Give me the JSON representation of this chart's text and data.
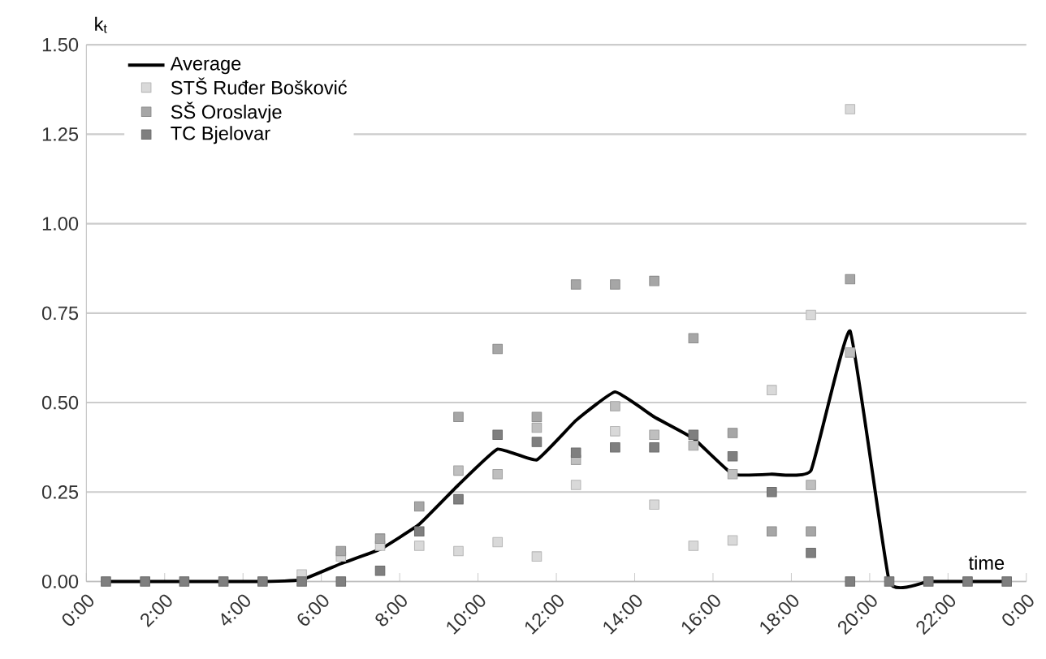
{
  "chart_data": {
    "type": "scatter",
    "xlabel": "time",
    "ylabel": "k$_{t}$",
    "x": [
      0.5,
      1.5,
      2.5,
      3.5,
      4.5,
      5.5,
      6.5,
      7.5,
      8.5,
      9.5,
      10.5,
      11.5,
      12.5,
      13.5,
      14.5,
      15.5,
      16.5,
      17.5,
      18.5,
      19.5,
      20.5,
      21.5,
      22.5,
      23.5
    ],
    "series": [
      {
        "name": "STŠ Ruđer Bošković",
        "color": "#d9d9d9",
        "values": [
          null,
          null,
          null,
          null,
          null,
          0.02,
          0.07,
          0.1,
          0.1,
          0.085,
          0.11,
          0.07,
          0.27,
          0.42,
          0.215,
          0.1,
          0.115,
          0.535,
          0.745,
          1.32,
          null,
          null,
          null,
          null
        ]
      },
      {
        "color": "#bfbfbf",
        "values": [
          null,
          null,
          null,
          null,
          null,
          null,
          null,
          null,
          null,
          0.31,
          0.3,
          0.43,
          0.34,
          0.49,
          0.41,
          0.38,
          0.3,
          null,
          0.27,
          0.64,
          null,
          null,
          null,
          null
        ]
      },
      {
        "name": "SŠ Oroslavje",
        "color": "#a6a6a6",
        "values": [
          null,
          null,
          null,
          null,
          null,
          null,
          0.085,
          0.12,
          0.21,
          0.46,
          0.65,
          0.46,
          0.83,
          0.83,
          0.84,
          0.68,
          0.415,
          0.14,
          0.14,
          0.845,
          null,
          null,
          null,
          null
        ]
      },
      {
        "name": "TC Bjelovar",
        "color": "#7f7f7f",
        "values": [
          0,
          0,
          0,
          0,
          0,
          0,
          0,
          0.03,
          0.14,
          0.23,
          0.41,
          0.39,
          0.36,
          0.375,
          0.375,
          0.41,
          0.35,
          0.25,
          0.08,
          0,
          0,
          0,
          0,
          0
        ]
      },
      {
        "name": "Average",
        "type": "line",
        "color": "#000000",
        "marker": "none",
        "values": [
          0,
          0,
          0,
          0,
          0,
          0.005,
          0.05,
          0.09,
          0.16,
          0.27,
          0.37,
          0.34,
          0.45,
          0.53,
          0.46,
          0.4,
          0.3,
          0.3,
          0.31,
          0.7,
          0,
          0,
          0,
          0
        ]
      }
    ],
    "xlim": [
      0,
      24
    ],
    "xticks": [
      {
        "value": 0,
        "label": "0:00"
      },
      {
        "value": 2,
        "label": "2:00"
      },
      {
        "value": 4,
        "label": "4:00"
      },
      {
        "value": 6,
        "label": "6:00"
      },
      {
        "value": 8,
        "label": "8:00"
      },
      {
        "value": 10,
        "label": "10:00"
      },
      {
        "value": 12,
        "label": "12:00"
      },
      {
        "value": 14,
        "label": "14:00"
      },
      {
        "value": 16,
        "label": "16:00"
      },
      {
        "value": 18,
        "label": "18:00"
      },
      {
        "value": 20,
        "label": "20:00"
      },
      {
        "value": 22,
        "label": "22:00"
      },
      {
        "value": 24,
        "label": "0:00"
      }
    ],
    "ylim": [
      0,
      1.5
    ],
    "yticks": [
      {
        "value": 0,
        "label": "0.00"
      },
      {
        "value": 0.25,
        "label": "0.25"
      },
      {
        "value": 0.5,
        "label": "0.50"
      },
      {
        "value": 0.75,
        "label": "0.75"
      },
      {
        "value": 1,
        "label": "1.00"
      },
      {
        "value": 1.25,
        "label": "1.25"
      },
      {
        "value": 1.5,
        "label": "1.50"
      }
    ],
    "grid": "y",
    "legend": "top left",
    "marker": "square"
  }
}
